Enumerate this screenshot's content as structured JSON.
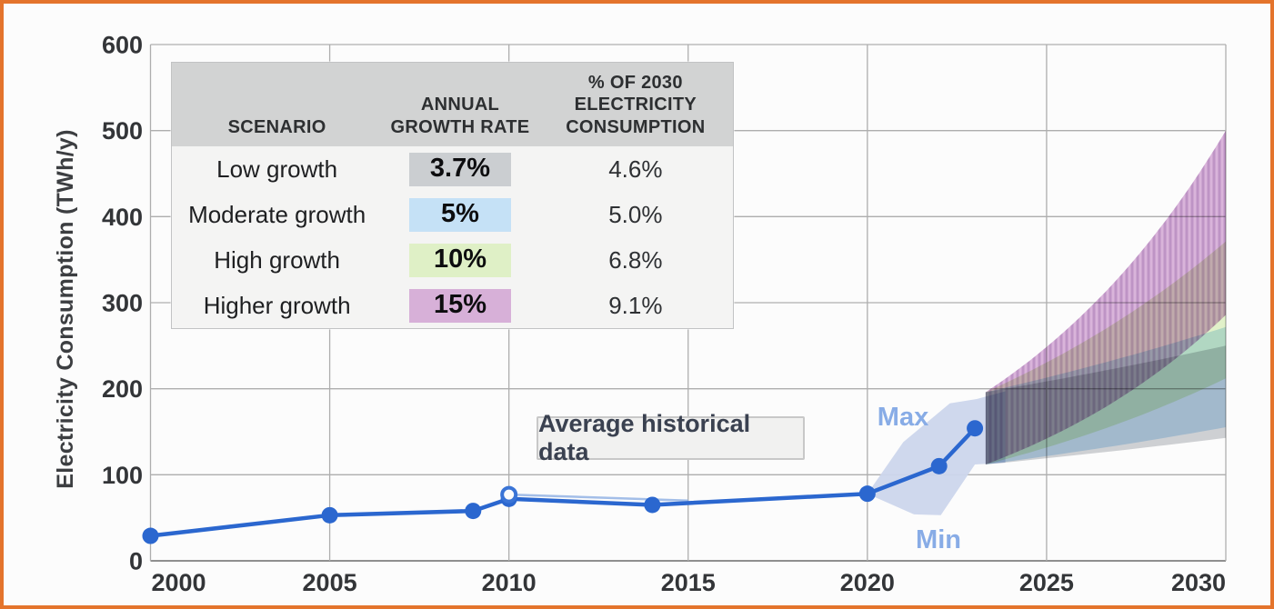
{
  "frame": {
    "border_color": "#e4742c",
    "background": "#fcfcfc"
  },
  "chart": {
    "y_axis_title": "Electricity Consumption (TWh/y)",
    "y_ticks": [
      0,
      100,
      200,
      300,
      400,
      500,
      600
    ],
    "x_ticks": [
      2000,
      2005,
      2010,
      2015,
      2020,
      2025,
      2030
    ]
  },
  "scenario_table": {
    "headers": [
      "SCENARIO",
      "ANNUAL GROWTH RATE",
      "% OF 2030 ELECTRICITY CONSUMPTION"
    ],
    "rows": [
      {
        "scenario": "Low growth",
        "growth_rate": "3.7%",
        "chip_color": "#cbced1",
        "share_2030": "4.6%"
      },
      {
        "scenario": "Moderate growth",
        "growth_rate": "5%",
        "chip_color": "#c5e1f6",
        "share_2030": "5.0%"
      },
      {
        "scenario": "High growth",
        "growth_rate": "10%",
        "chip_color": "#dff0c6",
        "share_2030": "6.8%"
      },
      {
        "scenario": "Higher growth",
        "growth_rate": "15%",
        "chip_color": "#d7b0d8",
        "share_2030": "9.1%"
      }
    ]
  },
  "annotations": {
    "historical": "Average historical data",
    "max": "Max",
    "min": "Min",
    "minmax_label_color": "#88ace6"
  },
  "chart_data": {
    "type": "line",
    "title": "",
    "xlabel": "",
    "ylabel": "Electricity Consumption (TWh/y)",
    "xlim": [
      2000,
      2030
    ],
    "ylim": [
      0,
      600
    ],
    "grid": true,
    "series": [
      {
        "name": "Average historical data",
        "color": "#2b67cf",
        "points": [
          [
            2000,
            29
          ],
          [
            2005,
            53
          ],
          [
            2009,
            58
          ],
          [
            2010,
            72
          ],
          [
            2014,
            65
          ],
          [
            2020,
            78
          ],
          [
            2022,
            110
          ],
          [
            2023,
            154
          ]
        ]
      }
    ],
    "open_marker": {
      "x": 2010,
      "y": 77
    },
    "secondary_line": [
      [
        2010,
        77
      ],
      [
        2015,
        70
      ]
    ],
    "minmax_envelope": {
      "color": "#ccd6ec",
      "polygon": [
        [
          2020,
          78
        ],
        [
          2021,
          138
        ],
        [
          2022.3,
          183
        ],
        [
          2023.05,
          188
        ],
        [
          2023.85,
          197
        ],
        [
          2023.85,
          114
        ],
        [
          2023,
          112
        ],
        [
          2022.05,
          53
        ],
        [
          2021.3,
          54
        ]
      ]
    },
    "projection": {
      "start_year": 2023.3,
      "end_year": 2030,
      "start_min": 112,
      "start_max": 196,
      "bands": [
        {
          "name": "Low growth",
          "annual_rate_pct": 3.7,
          "color": "#cbced1",
          "hatch": false
        },
        {
          "name": "Moderate growth",
          "annual_rate_pct": 5,
          "color": "#c5e1f6",
          "hatch": false
        },
        {
          "name": "High growth",
          "annual_rate_pct": 10,
          "color": "#dff0c6",
          "hatch": false
        },
        {
          "name": "Higher growth",
          "annual_rate_pct": 15,
          "color": "#d7b0d8",
          "hatch": true,
          "hatch_color": "#bb8ec2"
        }
      ]
    }
  }
}
